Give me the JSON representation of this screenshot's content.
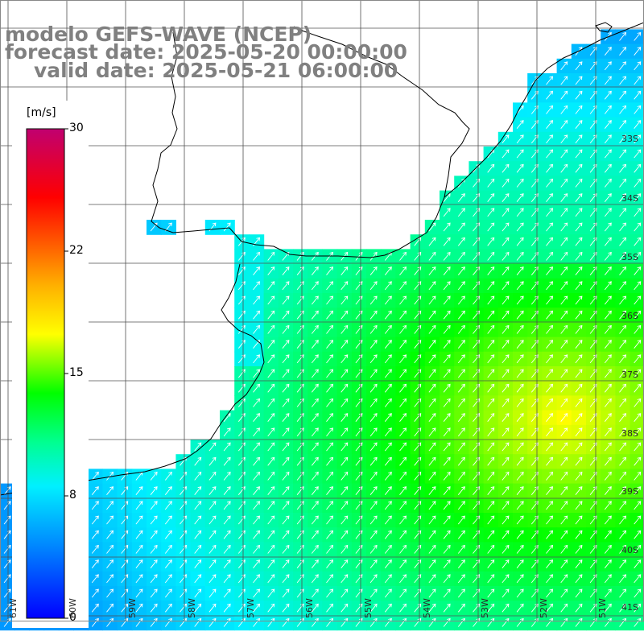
{
  "titles": {
    "line1": "modelo GEFS-WAVE (NCEP)",
    "line2": "forecast date: 2025-05-20 00:00:00",
    "line3": "valid date: 2025-05-21 06:00:00"
  },
  "colorbar": {
    "unit": "[m/s]",
    "ticks": [
      {
        "value": 30,
        "label": "30"
      },
      {
        "value": 22,
        "label": "22"
      },
      {
        "value": 15,
        "label": "15"
      },
      {
        "value": 8,
        "label": "8"
      },
      {
        "value": 0,
        "label": "0"
      }
    ],
    "min": 0,
    "max": 30,
    "colors": [
      "#0000ff",
      "#0080ff",
      "#00e0ff",
      "#00ff80",
      "#00ff00",
      "#ffff00",
      "#ff8000",
      "#ff0000",
      "#c00060"
    ]
  },
  "map": {
    "field": "wind speed",
    "lat_labels": [
      "33S",
      "34S",
      "35S",
      "36S",
      "37S",
      "38S",
      "39S",
      "40S",
      "41S"
    ],
    "lon_labels": [
      "61W",
      "60W",
      "59W",
      "58W",
      "57W",
      "56W",
      "55W",
      "54W",
      "53W",
      "52W",
      "51W"
    ],
    "speed_range_shown": [
      6,
      18
    ],
    "arrow_direction": "southwest wind, arrows pointing northeast",
    "grid": true
  }
}
